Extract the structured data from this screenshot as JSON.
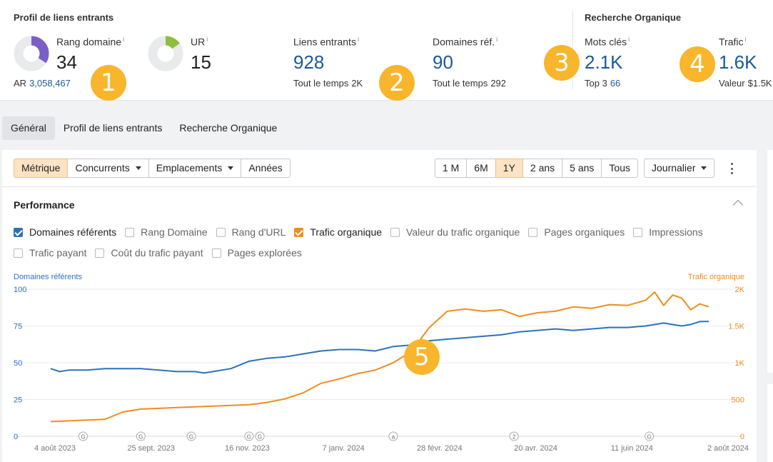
{
  "backlink_profile": {
    "title": "Profil de liens entrants",
    "domain_rating": {
      "label": "Rang domaine",
      "info": "i",
      "value": "34",
      "sub_label": "AR",
      "sub_value": "3,058,467",
      "fraction": 0.34
    },
    "url_rating": {
      "label": "UR",
      "info": "i",
      "value": "15",
      "fraction": 0.15
    },
    "backlinks": {
      "label": "Liens entrants",
      "info": "i",
      "value": "928",
      "sub_label": "Tout le temps",
      "sub_value": "2K"
    },
    "ref_domains": {
      "label": "Domaines réf.",
      "info": "i",
      "value": "90",
      "sub_label": "Tout le temps",
      "sub_value": "292"
    }
  },
  "organic_search": {
    "title": "Recherche Organique",
    "keywords": {
      "label": "Mots clés",
      "info": "i",
      "value": "2.1K",
      "sub_label": "Top 3",
      "sub_value": "66"
    },
    "traffic": {
      "label": "Trafic",
      "info": "i",
      "value": "1.6K",
      "sub_label": "Valeur",
      "sub_value": "$1.5K"
    }
  },
  "badges": [
    "1",
    "2",
    "3",
    "4",
    "5"
  ],
  "tabs": [
    {
      "label": "Général",
      "active": true
    },
    {
      "label": "Profil de liens entrants",
      "active": false
    },
    {
      "label": "Recherche Organique",
      "active": false
    }
  ],
  "toolbar": {
    "view_buttons": [
      {
        "label": "Métrique",
        "active": true,
        "dropdown": false
      },
      {
        "label": "Concurrents",
        "active": false,
        "dropdown": true
      },
      {
        "label": "Emplacements",
        "active": false,
        "dropdown": true
      },
      {
        "label": "Années",
        "active": false,
        "dropdown": false
      }
    ],
    "range_buttons": [
      {
        "label": "1 M",
        "active": false
      },
      {
        "label": "6M",
        "active": false
      },
      {
        "label": "1Y",
        "active": true
      },
      {
        "label": "2 ans",
        "active": false
      },
      {
        "label": "5 ans",
        "active": false
      },
      {
        "label": "Tous",
        "active": false
      }
    ],
    "interval": {
      "label": "Journalier"
    }
  },
  "performance": {
    "title": "Performance",
    "checkboxes_row1": [
      {
        "label": "Domaines référents",
        "checked": true,
        "color": "#2d72b8"
      },
      {
        "label": "Rang Domaine",
        "checked": false
      },
      {
        "label": "Rang d'URL",
        "checked": false
      },
      {
        "label": "Trafic organique",
        "checked": true,
        "color": "#f08c1e"
      },
      {
        "label": "Valeur du trafic organique",
        "checked": false
      },
      {
        "label": "Pages organiques",
        "checked": false
      },
      {
        "label": "Impressions",
        "checked": false
      }
    ],
    "checkboxes_row2": [
      {
        "label": "Trafic payant",
        "checked": false
      },
      {
        "label": "Coût du trafic payant",
        "checked": false
      },
      {
        "label": "Pages explorées",
        "checked": false
      }
    ]
  },
  "chart_data": {
    "type": "line",
    "left_axis_title": "Domaines référents",
    "right_axis_title": "Trafic organique",
    "left_ticks": [
      "0",
      "25",
      "50",
      "75",
      "100"
    ],
    "right_ticks": [
      "0",
      "500",
      "1K",
      "1.5K",
      "2K"
    ],
    "ylim_left": [
      0,
      100
    ],
    "ylim_right": [
      0,
      2000
    ],
    "x_labels": [
      "4 août 2023",
      "25 sept. 2023",
      "16 nov. 2023",
      "7 janv. 2024",
      "28 févr. 2024",
      "20 avr. 2024",
      "11 juin 2024",
      "2 août 2024"
    ],
    "grid": true,
    "colors": {
      "left": "#2d72b8",
      "right": "#f08c1e"
    },
    "series": [
      {
        "name": "Domaines référents",
        "axis": "left",
        "x": [
          0,
          5,
          10,
          20,
          30,
          40,
          50,
          60,
          70,
          80,
          85,
          90,
          100,
          110,
          120,
          130,
          140,
          150,
          160,
          170,
          180,
          190,
          200,
          210,
          220,
          230,
          240,
          250,
          260,
          270,
          280,
          290,
          300,
          310,
          320,
          330,
          340,
          350,
          355,
          360,
          365
        ],
        "y": [
          46,
          44,
          45,
          45,
          46,
          46,
          46,
          45,
          44,
          44,
          43,
          44,
          46,
          51,
          53,
          54,
          56,
          58,
          59,
          59,
          58,
          61,
          62,
          65,
          66,
          67,
          68,
          69,
          71,
          72,
          73,
          72,
          73,
          74,
          74,
          75,
          77,
          75,
          76,
          78,
          78
        ]
      },
      {
        "name": "Trafic organique",
        "axis": "right",
        "x": [
          0,
          10,
          20,
          30,
          40,
          50,
          60,
          70,
          80,
          90,
          100,
          110,
          120,
          130,
          140,
          150,
          160,
          170,
          180,
          190,
          200,
          210,
          220,
          230,
          240,
          250,
          260,
          270,
          280,
          290,
          300,
          310,
          320,
          330,
          335,
          340,
          345,
          350,
          355,
          360,
          365
        ],
        "y": [
          200,
          210,
          220,
          230,
          330,
          370,
          380,
          390,
          400,
          410,
          420,
          430,
          460,
          510,
          590,
          720,
          780,
          850,
          900,
          1000,
          1150,
          1480,
          1700,
          1730,
          1700,
          1720,
          1630,
          1680,
          1700,
          1760,
          1740,
          1790,
          1780,
          1850,
          1960,
          1780,
          1920,
          1880,
          1720,
          1800,
          1760
        ]
      }
    ],
    "annotations": [
      {
        "x": 18,
        "label": "G"
      },
      {
        "x": 50,
        "label": "G"
      },
      {
        "x": 78,
        "label": "G"
      },
      {
        "x": 110,
        "label": "G"
      },
      {
        "x": 116,
        "label": "G"
      },
      {
        "x": 190,
        "label": "a"
      },
      {
        "x": 257,
        "label": "2"
      },
      {
        "x": 332,
        "label": "G"
      }
    ]
  }
}
